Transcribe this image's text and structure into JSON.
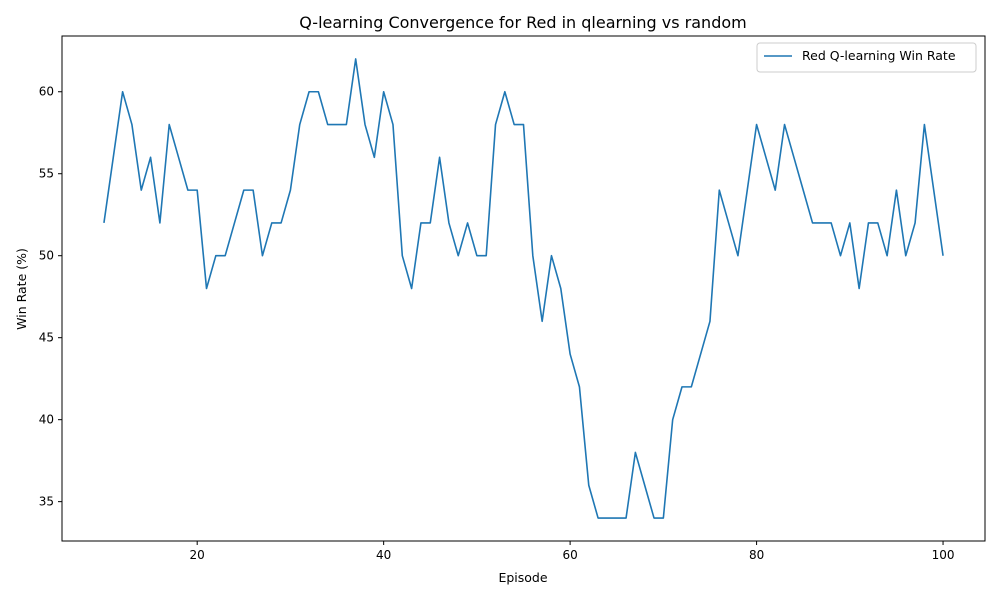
{
  "chart_data": {
    "type": "line",
    "title": "Q-learning Convergence for Red in qlearning vs random",
    "xlabel": "Episode",
    "ylabel": "Win Rate (%)",
    "xlim": [
      5.5,
      104.5
    ],
    "ylim": [
      32.6,
      63.4
    ],
    "xticks": [
      20,
      40,
      60,
      80,
      100
    ],
    "yticks": [
      35,
      40,
      45,
      50,
      55,
      60
    ],
    "legend_position": "upper right",
    "grid": false,
    "series": [
      {
        "name": "Red Q-learning Win Rate",
        "color": "#1f77b4",
        "x": [
          10,
          11,
          12,
          13,
          14,
          15,
          16,
          17,
          18,
          19,
          20,
          21,
          22,
          23,
          24,
          25,
          26,
          27,
          28,
          29,
          30,
          31,
          32,
          33,
          34,
          35,
          36,
          37,
          38,
          39,
          40,
          41,
          42,
          43,
          44,
          45,
          46,
          47,
          48,
          49,
          50,
          51,
          52,
          53,
          54,
          55,
          56,
          57,
          58,
          59,
          60,
          61,
          62,
          63,
          64,
          65,
          66,
          67,
          68,
          69,
          70,
          71,
          72,
          73,
          74,
          75,
          76,
          77,
          78,
          79,
          80,
          81,
          82,
          83,
          84,
          85,
          86,
          87,
          88,
          89,
          90,
          91,
          92,
          93,
          94,
          95,
          96,
          97,
          98,
          99,
          100
        ],
        "y": [
          52,
          56,
          60,
          58,
          54,
          56,
          52,
          58,
          56,
          54,
          54,
          48,
          50,
          50,
          52,
          54,
          54,
          50,
          52,
          52,
          54,
          58,
          60,
          60,
          58,
          58,
          58,
          62,
          58,
          56,
          60,
          58,
          50,
          48,
          52,
          52,
          56,
          52,
          50,
          52,
          50,
          50,
          58,
          60,
          58,
          58,
          50,
          46,
          50,
          48,
          44,
          42,
          36,
          34,
          34,
          34,
          34,
          38,
          36,
          34,
          34,
          40,
          42,
          42,
          44,
          46,
          54,
          52,
          50,
          54,
          58,
          56,
          54,
          58,
          56,
          54,
          52,
          52,
          52,
          50,
          52,
          48,
          52,
          52,
          50,
          54,
          50,
          52,
          58,
          54,
          50
        ]
      }
    ]
  }
}
